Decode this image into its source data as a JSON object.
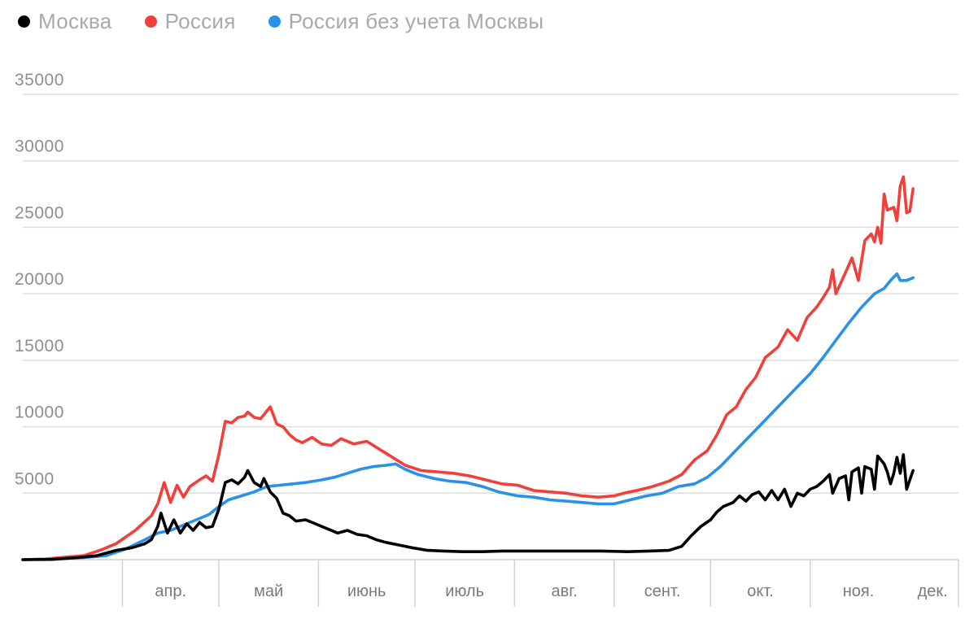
{
  "chart_data": {
    "type": "line",
    "title": "",
    "xlabel": "",
    "ylabel": "",
    "ylim": [
      0,
      35000
    ],
    "yticks": [
      5000,
      10000,
      15000,
      20000,
      25000,
      30000,
      35000
    ],
    "x_start": "2020-03-01",
    "x_end": "2020-11-29",
    "grid": true,
    "legend_position": "top-left",
    "months": [
      {
        "label": "апр.",
        "date": "2020-04-01"
      },
      {
        "label": "май",
        "date": "2020-05-01"
      },
      {
        "label": "июнь",
        "date": "2020-06-01"
      },
      {
        "label": "июль",
        "date": "2020-07-01"
      },
      {
        "label": "авг.",
        "date": "2020-08-01"
      },
      {
        "label": "сент.",
        "date": "2020-09-01"
      },
      {
        "label": "окт.",
        "date": "2020-10-01"
      },
      {
        "label": "ноя.",
        "date": "2020-11-01"
      },
      {
        "label": "дек.",
        "date": "2020-12-01"
      }
    ],
    "series": [
      {
        "name": "Россия",
        "color": "#f0403c",
        "points": [
          [
            "2020-03-01",
            0
          ],
          [
            "2020-03-08",
            50
          ],
          [
            "2020-03-15",
            200
          ],
          [
            "2020-03-20",
            300
          ],
          [
            "2020-03-25",
            700
          ],
          [
            "2020-03-30",
            1200
          ],
          [
            "2020-04-05",
            2200
          ],
          [
            "2020-04-10",
            3300
          ],
          [
            "2020-04-12",
            4200
          ],
          [
            "2020-04-14",
            5800
          ],
          [
            "2020-04-16",
            4300
          ],
          [
            "2020-04-18",
            5600
          ],
          [
            "2020-04-20",
            4700
          ],
          [
            "2020-04-22",
            5500
          ],
          [
            "2020-04-25",
            6000
          ],
          [
            "2020-04-27",
            6300
          ],
          [
            "2020-04-29",
            5900
          ],
          [
            "2020-05-01",
            7900
          ],
          [
            "2020-05-03",
            10400
          ],
          [
            "2020-05-05",
            10300
          ],
          [
            "2020-05-07",
            10700
          ],
          [
            "2020-05-09",
            10800
          ],
          [
            "2020-05-10",
            11100
          ],
          [
            "2020-05-12",
            10700
          ],
          [
            "2020-05-14",
            10600
          ],
          [
            "2020-05-16",
            11200
          ],
          [
            "2020-05-17",
            11500
          ],
          [
            "2020-05-19",
            10200
          ],
          [
            "2020-05-21",
            10000
          ],
          [
            "2020-05-23",
            9400
          ],
          [
            "2020-05-25",
            9000
          ],
          [
            "2020-05-27",
            8800
          ],
          [
            "2020-05-30",
            9200
          ],
          [
            "2020-06-02",
            8700
          ],
          [
            "2020-06-05",
            8600
          ],
          [
            "2020-06-08",
            9100
          ],
          [
            "2020-06-12",
            8700
          ],
          [
            "2020-06-16",
            8900
          ],
          [
            "2020-06-20",
            8300
          ],
          [
            "2020-06-24",
            7700
          ],
          [
            "2020-06-28",
            7100
          ],
          [
            "2020-07-03",
            6700
          ],
          [
            "2020-07-08",
            6600
          ],
          [
            "2020-07-13",
            6500
          ],
          [
            "2020-07-18",
            6300
          ],
          [
            "2020-07-23",
            6000
          ],
          [
            "2020-07-28",
            5700
          ],
          [
            "2020-08-02",
            5600
          ],
          [
            "2020-08-07",
            5200
          ],
          [
            "2020-08-12",
            5100
          ],
          [
            "2020-08-17",
            5000
          ],
          [
            "2020-08-22",
            4800
          ],
          [
            "2020-08-27",
            4700
          ],
          [
            "2020-09-01",
            4800
          ],
          [
            "2020-09-04",
            5000
          ],
          [
            "2020-09-08",
            5200
          ],
          [
            "2020-09-13",
            5500
          ],
          [
            "2020-09-18",
            5900
          ],
          [
            "2020-09-22",
            6400
          ],
          [
            "2020-09-26",
            7500
          ],
          [
            "2020-09-30",
            8200
          ],
          [
            "2020-10-03",
            9400
          ],
          [
            "2020-10-06",
            10900
          ],
          [
            "2020-10-09",
            11500
          ],
          [
            "2020-10-12",
            12800
          ],
          [
            "2020-10-15",
            13700
          ],
          [
            "2020-10-18",
            15200
          ],
          [
            "2020-10-22",
            16000
          ],
          [
            "2020-10-25",
            17300
          ],
          [
            "2020-10-28",
            16500
          ],
          [
            "2020-10-31",
            18200
          ],
          [
            "2020-11-03",
            19000
          ],
          [
            "2020-11-05",
            19700
          ],
          [
            "2020-11-07",
            20500
          ],
          [
            "2020-11-08",
            21800
          ],
          [
            "2020-11-09",
            20000
          ],
          [
            "2020-11-12",
            21600
          ],
          [
            "2020-11-14",
            22700
          ],
          [
            "2020-11-16",
            21000
          ],
          [
            "2020-11-18",
            24000
          ],
          [
            "2020-11-20",
            24500
          ],
          [
            "2020-11-21",
            23900
          ],
          [
            "2020-11-22",
            25000
          ],
          [
            "2020-11-23",
            23800
          ],
          [
            "2020-11-24",
            27500
          ],
          [
            "2020-11-25",
            26300
          ],
          [
            "2020-11-27",
            26500
          ],
          [
            "2020-11-28",
            25500
          ],
          [
            "2020-11-29",
            28100
          ],
          [
            "2020-11-30",
            28800
          ],
          [
            "2020-12-01",
            26100
          ],
          [
            "2020-12-02",
            26200
          ],
          [
            "2020-12-03",
            27900
          ]
        ]
      },
      {
        "name": "Россия без учета Москвы",
        "color": "#2a91ea",
        "points": [
          [
            "2020-03-01",
            0
          ],
          [
            "2020-03-10",
            50
          ],
          [
            "2020-03-20",
            150
          ],
          [
            "2020-03-27",
            300
          ],
          [
            "2020-04-02",
            800
          ],
          [
            "2020-04-08",
            1500
          ],
          [
            "2020-04-12",
            2000
          ],
          [
            "2020-04-16",
            2200
          ],
          [
            "2020-04-20",
            2600
          ],
          [
            "2020-04-24",
            3000
          ],
          [
            "2020-04-28",
            3400
          ],
          [
            "2020-05-01",
            4000
          ],
          [
            "2020-05-04",
            4500
          ],
          [
            "2020-05-08",
            4800
          ],
          [
            "2020-05-12",
            5100
          ],
          [
            "2020-05-16",
            5500
          ],
          [
            "2020-05-20",
            5600
          ],
          [
            "2020-05-24",
            5700
          ],
          [
            "2020-05-28",
            5800
          ],
          [
            "2020-06-02",
            6000
          ],
          [
            "2020-06-06",
            6200
          ],
          [
            "2020-06-10",
            6500
          ],
          [
            "2020-06-14",
            6800
          ],
          [
            "2020-06-18",
            7000
          ],
          [
            "2020-06-22",
            7100
          ],
          [
            "2020-06-25",
            7200
          ],
          [
            "2020-06-28",
            6800
          ],
          [
            "2020-07-02",
            6400
          ],
          [
            "2020-07-07",
            6100
          ],
          [
            "2020-07-12",
            5900
          ],
          [
            "2020-07-17",
            5800
          ],
          [
            "2020-07-22",
            5500
          ],
          [
            "2020-07-27",
            5100
          ],
          [
            "2020-08-02",
            4800
          ],
          [
            "2020-08-07",
            4700
          ],
          [
            "2020-08-12",
            4500
          ],
          [
            "2020-08-17",
            4400
          ],
          [
            "2020-08-22",
            4300
          ],
          [
            "2020-08-27",
            4200
          ],
          [
            "2020-09-01",
            4200
          ],
          [
            "2020-09-06",
            4500
          ],
          [
            "2020-09-11",
            4800
          ],
          [
            "2020-09-16",
            5000
          ],
          [
            "2020-09-21",
            5500
          ],
          [
            "2020-09-26",
            5700
          ],
          [
            "2020-09-30",
            6200
          ],
          [
            "2020-10-04",
            7000
          ],
          [
            "2020-10-08",
            8000
          ],
          [
            "2020-10-12",
            9000
          ],
          [
            "2020-10-16",
            10000
          ],
          [
            "2020-10-20",
            11000
          ],
          [
            "2020-10-24",
            12000
          ],
          [
            "2020-10-28",
            13000
          ],
          [
            "2020-11-01",
            14000
          ],
          [
            "2020-11-05",
            15200
          ],
          [
            "2020-11-09",
            16500
          ],
          [
            "2020-11-13",
            17800
          ],
          [
            "2020-11-17",
            19000
          ],
          [
            "2020-11-21",
            20000
          ],
          [
            "2020-11-24",
            20400
          ],
          [
            "2020-11-26",
            21000
          ],
          [
            "2020-11-28",
            21500
          ],
          [
            "2020-11-29",
            21000
          ],
          [
            "2020-12-01",
            21000
          ],
          [
            "2020-12-03",
            21200
          ]
        ]
      },
      {
        "name": "Москва",
        "color": "#000000",
        "points": [
          [
            "2020-03-01",
            0
          ],
          [
            "2020-03-10",
            20
          ],
          [
            "2020-03-18",
            150
          ],
          [
            "2020-03-24",
            300
          ],
          [
            "2020-03-30",
            700
          ],
          [
            "2020-04-04",
            900
          ],
          [
            "2020-04-08",
            1200
          ],
          [
            "2020-04-10",
            1500
          ],
          [
            "2020-04-12",
            2500
          ],
          [
            "2020-04-13",
            3500
          ],
          [
            "2020-04-15",
            2000
          ],
          [
            "2020-04-17",
            3000
          ],
          [
            "2020-04-19",
            2000
          ],
          [
            "2020-04-21",
            2700
          ],
          [
            "2020-04-23",
            2200
          ],
          [
            "2020-04-25",
            2800
          ],
          [
            "2020-04-27",
            2400
          ],
          [
            "2020-04-29",
            2500
          ],
          [
            "2020-05-01",
            3800
          ],
          [
            "2020-05-03",
            5800
          ],
          [
            "2020-05-05",
            6000
          ],
          [
            "2020-05-07",
            5700
          ],
          [
            "2020-05-09",
            6200
          ],
          [
            "2020-05-10",
            6700
          ],
          [
            "2020-05-12",
            5800
          ],
          [
            "2020-05-14",
            5500
          ],
          [
            "2020-05-15",
            6100
          ],
          [
            "2020-05-17",
            5100
          ],
          [
            "2020-05-19",
            4600
          ],
          [
            "2020-05-21",
            3500
          ],
          [
            "2020-05-23",
            3300
          ],
          [
            "2020-05-25",
            2900
          ],
          [
            "2020-05-28",
            3000
          ],
          [
            "2020-06-01",
            2600
          ],
          [
            "2020-06-04",
            2300
          ],
          [
            "2020-06-07",
            2000
          ],
          [
            "2020-06-10",
            2200
          ],
          [
            "2020-06-13",
            1900
          ],
          [
            "2020-06-16",
            1800
          ],
          [
            "2020-06-19",
            1500
          ],
          [
            "2020-06-22",
            1300
          ],
          [
            "2020-06-26",
            1100
          ],
          [
            "2020-06-30",
            900
          ],
          [
            "2020-07-05",
            700
          ],
          [
            "2020-07-10",
            650
          ],
          [
            "2020-07-16",
            600
          ],
          [
            "2020-07-22",
            600
          ],
          [
            "2020-07-28",
            650
          ],
          [
            "2020-08-04",
            650
          ],
          [
            "2020-08-12",
            650
          ],
          [
            "2020-08-20",
            650
          ],
          [
            "2020-08-28",
            650
          ],
          [
            "2020-09-05",
            600
          ],
          [
            "2020-09-12",
            650
          ],
          [
            "2020-09-18",
            700
          ],
          [
            "2020-09-22",
            1000
          ],
          [
            "2020-09-25",
            1800
          ],
          [
            "2020-09-28",
            2500
          ],
          [
            "2020-10-01",
            3000
          ],
          [
            "2020-10-03",
            3600
          ],
          [
            "2020-10-05",
            4000
          ],
          [
            "2020-10-08",
            4300
          ],
          [
            "2020-10-10",
            4800
          ],
          [
            "2020-10-12",
            4400
          ],
          [
            "2020-10-14",
            4900
          ],
          [
            "2020-10-16",
            5100
          ],
          [
            "2020-10-18",
            4500
          ],
          [
            "2020-10-20",
            5200
          ],
          [
            "2020-10-22",
            4500
          ],
          [
            "2020-10-24",
            5300
          ],
          [
            "2020-10-26",
            4000
          ],
          [
            "2020-10-28",
            5000
          ],
          [
            "2020-10-30",
            4800
          ],
          [
            "2020-11-01",
            5300
          ],
          [
            "2020-11-03",
            5500
          ],
          [
            "2020-11-05",
            5900
          ],
          [
            "2020-11-07",
            6400
          ],
          [
            "2020-11-08",
            5000
          ],
          [
            "2020-11-10",
            6100
          ],
          [
            "2020-11-12",
            6300
          ],
          [
            "2020-11-13",
            4500
          ],
          [
            "2020-11-14",
            6600
          ],
          [
            "2020-11-16",
            6900
          ],
          [
            "2020-11-17",
            5000
          ],
          [
            "2020-11-18",
            7000
          ],
          [
            "2020-11-20",
            6800
          ],
          [
            "2020-11-21",
            5300
          ],
          [
            "2020-11-22",
            7800
          ],
          [
            "2020-11-24",
            7200
          ],
          [
            "2020-11-25",
            6600
          ],
          [
            "2020-11-26",
            5700
          ],
          [
            "2020-11-27",
            6500
          ],
          [
            "2020-11-28",
            7700
          ],
          [
            "2020-11-29",
            6500
          ],
          [
            "2020-11-30",
            7900
          ],
          [
            "2020-12-01",
            5300
          ],
          [
            "2020-12-02",
            6000
          ],
          [
            "2020-12-03",
            6700
          ]
        ]
      }
    ]
  },
  "legend": [
    {
      "label": "Москва",
      "color": "#000000"
    },
    {
      "label": "Россия",
      "color": "#f0403c"
    },
    {
      "label": "Россия без учета Москвы",
      "color": "#2a91ea"
    }
  ]
}
